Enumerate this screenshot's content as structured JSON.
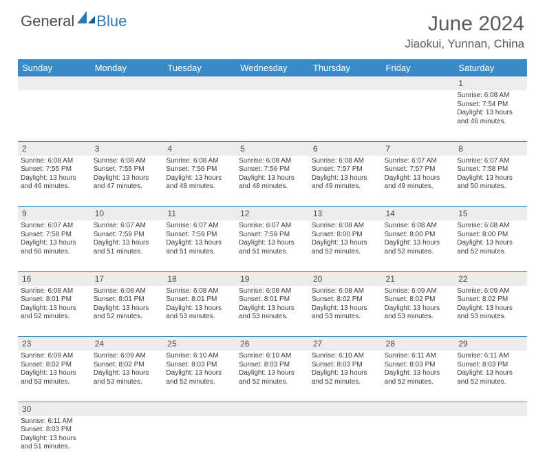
{
  "logo": {
    "general": "General",
    "blue": "Blue"
  },
  "header": {
    "month_title": "June 2024",
    "location": "Jiaokui, Yunnan, China"
  },
  "colors": {
    "header_bg": "#3a8ac8",
    "header_text": "#ffffff",
    "daynum_bg": "#ececec",
    "border": "#3a8ac8",
    "text": "#3a3a3a",
    "title": "#5a5a5a",
    "logo_blue": "#2a7ab8"
  },
  "weekdays": [
    "Sunday",
    "Monday",
    "Tuesday",
    "Wednesday",
    "Thursday",
    "Friday",
    "Saturday"
  ],
  "weeks": [
    {
      "nums": [
        "",
        "",
        "",
        "",
        "",
        "",
        "1"
      ],
      "days": [
        null,
        null,
        null,
        null,
        null,
        null,
        {
          "sr": "Sunrise: 6:08 AM",
          "ss": "Sunset: 7:54 PM",
          "d1": "Daylight: 13 hours",
          "d2": "and 46 minutes."
        }
      ]
    },
    {
      "nums": [
        "2",
        "3",
        "4",
        "5",
        "6",
        "7",
        "8"
      ],
      "days": [
        {
          "sr": "Sunrise: 6:08 AM",
          "ss": "Sunset: 7:55 PM",
          "d1": "Daylight: 13 hours",
          "d2": "and 46 minutes."
        },
        {
          "sr": "Sunrise: 6:08 AM",
          "ss": "Sunset: 7:55 PM",
          "d1": "Daylight: 13 hours",
          "d2": "and 47 minutes."
        },
        {
          "sr": "Sunrise: 6:08 AM",
          "ss": "Sunset: 7:56 PM",
          "d1": "Daylight: 13 hours",
          "d2": "and 48 minutes."
        },
        {
          "sr": "Sunrise: 6:08 AM",
          "ss": "Sunset: 7:56 PM",
          "d1": "Daylight: 13 hours",
          "d2": "and 48 minutes."
        },
        {
          "sr": "Sunrise: 6:08 AM",
          "ss": "Sunset: 7:57 PM",
          "d1": "Daylight: 13 hours",
          "d2": "and 49 minutes."
        },
        {
          "sr": "Sunrise: 6:07 AM",
          "ss": "Sunset: 7:57 PM",
          "d1": "Daylight: 13 hours",
          "d2": "and 49 minutes."
        },
        {
          "sr": "Sunrise: 6:07 AM",
          "ss": "Sunset: 7:58 PM",
          "d1": "Daylight: 13 hours",
          "d2": "and 50 minutes."
        }
      ]
    },
    {
      "nums": [
        "9",
        "10",
        "11",
        "12",
        "13",
        "14",
        "15"
      ],
      "days": [
        {
          "sr": "Sunrise: 6:07 AM",
          "ss": "Sunset: 7:58 PM",
          "d1": "Daylight: 13 hours",
          "d2": "and 50 minutes."
        },
        {
          "sr": "Sunrise: 6:07 AM",
          "ss": "Sunset: 7:59 PM",
          "d1": "Daylight: 13 hours",
          "d2": "and 51 minutes."
        },
        {
          "sr": "Sunrise: 6:07 AM",
          "ss": "Sunset: 7:59 PM",
          "d1": "Daylight: 13 hours",
          "d2": "and 51 minutes."
        },
        {
          "sr": "Sunrise: 6:07 AM",
          "ss": "Sunset: 7:59 PM",
          "d1": "Daylight: 13 hours",
          "d2": "and 51 minutes."
        },
        {
          "sr": "Sunrise: 6:08 AM",
          "ss": "Sunset: 8:00 PM",
          "d1": "Daylight: 13 hours",
          "d2": "and 52 minutes."
        },
        {
          "sr": "Sunrise: 6:08 AM",
          "ss": "Sunset: 8:00 PM",
          "d1": "Daylight: 13 hours",
          "d2": "and 52 minutes."
        },
        {
          "sr": "Sunrise: 6:08 AM",
          "ss": "Sunset: 8:00 PM",
          "d1": "Daylight: 13 hours",
          "d2": "and 52 minutes."
        }
      ]
    },
    {
      "nums": [
        "16",
        "17",
        "18",
        "19",
        "20",
        "21",
        "22"
      ],
      "days": [
        {
          "sr": "Sunrise: 6:08 AM",
          "ss": "Sunset: 8:01 PM",
          "d1": "Daylight: 13 hours",
          "d2": "and 52 minutes."
        },
        {
          "sr": "Sunrise: 6:08 AM",
          "ss": "Sunset: 8:01 PM",
          "d1": "Daylight: 13 hours",
          "d2": "and 52 minutes."
        },
        {
          "sr": "Sunrise: 6:08 AM",
          "ss": "Sunset: 8:01 PM",
          "d1": "Daylight: 13 hours",
          "d2": "and 53 minutes."
        },
        {
          "sr": "Sunrise: 6:08 AM",
          "ss": "Sunset: 8:01 PM",
          "d1": "Daylight: 13 hours",
          "d2": "and 53 minutes."
        },
        {
          "sr": "Sunrise: 6:08 AM",
          "ss": "Sunset: 8:02 PM",
          "d1": "Daylight: 13 hours",
          "d2": "and 53 minutes."
        },
        {
          "sr": "Sunrise: 6:09 AM",
          "ss": "Sunset: 8:02 PM",
          "d1": "Daylight: 13 hours",
          "d2": "and 53 minutes."
        },
        {
          "sr": "Sunrise: 6:09 AM",
          "ss": "Sunset: 8:02 PM",
          "d1": "Daylight: 13 hours",
          "d2": "and 53 minutes."
        }
      ]
    },
    {
      "nums": [
        "23",
        "24",
        "25",
        "26",
        "27",
        "28",
        "29"
      ],
      "days": [
        {
          "sr": "Sunrise: 6:09 AM",
          "ss": "Sunset: 8:02 PM",
          "d1": "Daylight: 13 hours",
          "d2": "and 53 minutes."
        },
        {
          "sr": "Sunrise: 6:09 AM",
          "ss": "Sunset: 8:02 PM",
          "d1": "Daylight: 13 hours",
          "d2": "and 53 minutes."
        },
        {
          "sr": "Sunrise: 6:10 AM",
          "ss": "Sunset: 8:03 PM",
          "d1": "Daylight: 13 hours",
          "d2": "and 52 minutes."
        },
        {
          "sr": "Sunrise: 6:10 AM",
          "ss": "Sunset: 8:03 PM",
          "d1": "Daylight: 13 hours",
          "d2": "and 52 minutes."
        },
        {
          "sr": "Sunrise: 6:10 AM",
          "ss": "Sunset: 8:03 PM",
          "d1": "Daylight: 13 hours",
          "d2": "and 52 minutes."
        },
        {
          "sr": "Sunrise: 6:11 AM",
          "ss": "Sunset: 8:03 PM",
          "d1": "Daylight: 13 hours",
          "d2": "and 52 minutes."
        },
        {
          "sr": "Sunrise: 6:11 AM",
          "ss": "Sunset: 8:03 PM",
          "d1": "Daylight: 13 hours",
          "d2": "and 52 minutes."
        }
      ]
    },
    {
      "nums": [
        "30",
        "",
        "",
        "",
        "",
        "",
        ""
      ],
      "days": [
        {
          "sr": "Sunrise: 6:11 AM",
          "ss": "Sunset: 8:03 PM",
          "d1": "Daylight: 13 hours",
          "d2": "and 51 minutes."
        },
        null,
        null,
        null,
        null,
        null,
        null
      ]
    }
  ]
}
